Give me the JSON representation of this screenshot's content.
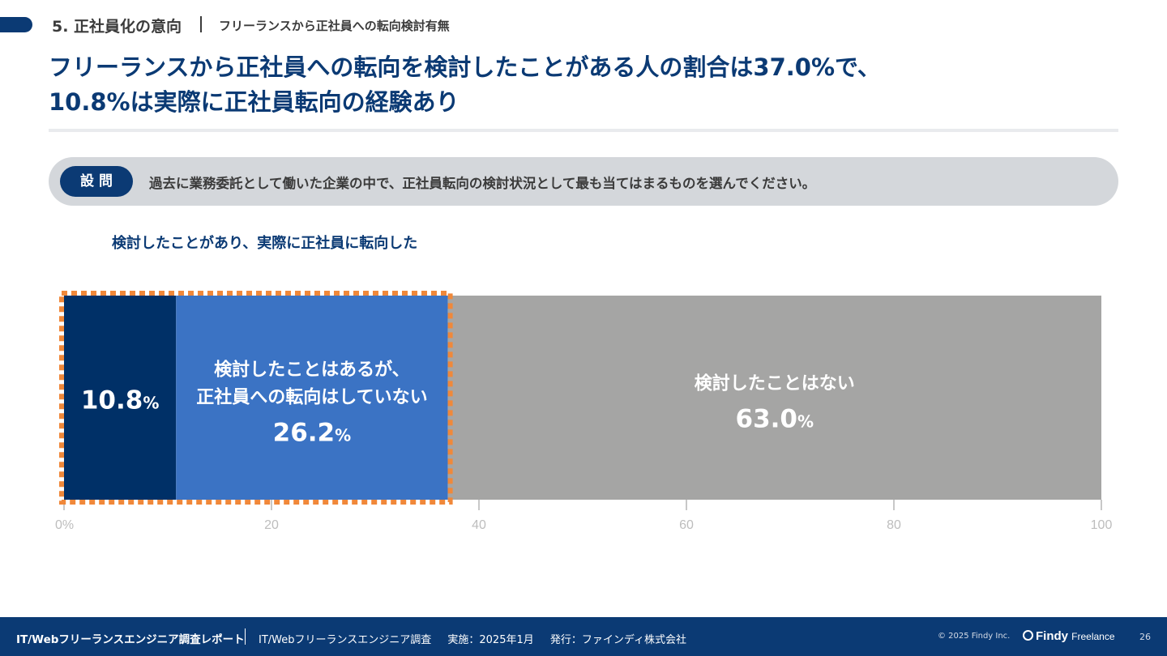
{
  "section": {
    "title": "5. 正社員化の意向",
    "subtitle": "フリーランスから正社員への転向検討有無"
  },
  "headline": {
    "line1": "フリーランスから正社員への転向を検討したことがある人の割合は37.0%で、",
    "line2": "10.8%は実際に正社員転向の経験あり"
  },
  "question": {
    "badge": "設問",
    "text": "過去に業務委託として働いた企業の中で、正社員転向の検討状況として最も当てはまるものを選んでください。"
  },
  "chart_data": {
    "type": "bar",
    "orientation": "horizontal-stacked",
    "unit": "%",
    "xlim": [
      0,
      100
    ],
    "ticks": [
      "0%",
      "20",
      "40",
      "60",
      "80",
      "100"
    ],
    "annotation": "検討したことがあり、実際に正社員に転向した",
    "highlight_range": [
      0,
      37.0
    ],
    "segments": [
      {
        "label": "",
        "value": 10.8,
        "value_label": "10.8",
        "color": "#003067"
      },
      {
        "label": "検討したことはあるが、\n正社員への転向はしていない",
        "value": 26.2,
        "value_label": "26.2",
        "color": "#3b73c4"
      },
      {
        "label": "検討したことはない",
        "value": 63.0,
        "value_label": "63.0",
        "color": "#a5a5a4"
      }
    ],
    "highlight_color": "#f0883a"
  },
  "footer": {
    "title": "IT/Webフリーランスエンジニア調査レポート",
    "survey": "IT/Webフリーランスエンジニア調査",
    "date": "実施：2025年1月",
    "publisher": "発行：ファインディ株式会社",
    "copyright": "© 2025 Findy Inc.",
    "logo_main": "Findy",
    "logo_sub": "Freelance",
    "page": "26"
  },
  "colors": {
    "navy": "#0b3a74",
    "question_bg": "#d4d7db"
  }
}
